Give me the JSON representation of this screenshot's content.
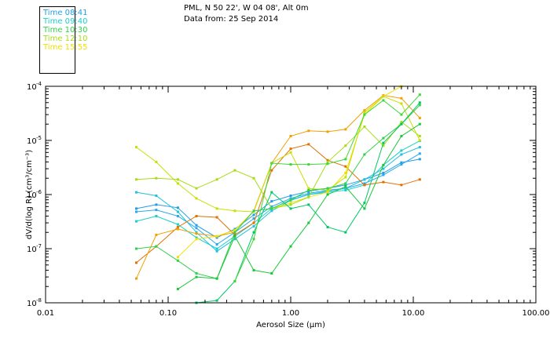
{
  "header": {
    "line1": "PML, N 50 22', W 04 08', Alt 0m",
    "line2": "Data from: 25 Sep 2014"
  },
  "chart_data": {
    "type": "line",
    "title": "",
    "xlabel": "Aerosol Size (µm)",
    "ylabel": "dV/d(log R) (cm³/cm⁻³)",
    "x_scale": "log",
    "y_scale": "log",
    "xlim": [
      0.01,
      100
    ],
    "ylim": [
      1e-08,
      0.0001
    ],
    "grid": false,
    "legend_position": "top-left outside plot",
    "x_ticks": [
      {
        "value": 0.01,
        "label": "0.01"
      },
      {
        "value": 0.1,
        "label": "0.10"
      },
      {
        "value": 1,
        "label": "1.00"
      },
      {
        "value": 10,
        "label": "10.00"
      },
      {
        "value": 100,
        "label": "100.00"
      }
    ],
    "y_ticks": [
      {
        "value": 1e-08,
        "base": "10",
        "exp": "-8"
      },
      {
        "value": 1e-07,
        "base": "10",
        "exp": "-7"
      },
      {
        "value": 1e-06,
        "base": "10",
        "exp": "-6"
      },
      {
        "value": 1e-05,
        "base": "10",
        "exp": "-5"
      },
      {
        "value": 0.0001,
        "base": "10",
        "exp": "-4"
      }
    ],
    "legend": [
      {
        "label": "Time 08:41",
        "color": "#1f9fe6"
      },
      {
        "label": "Time 09:40",
        "color": "#19d0cc"
      },
      {
        "label": "Time 10:30",
        "color": "#2fd24a"
      },
      {
        "label": "Time 12:10",
        "color": "#a8dc16"
      },
      {
        "label": "Time 15:55",
        "color": "#f0e000"
      }
    ],
    "series": [
      {
        "color": "#1f9fe6",
        "x": [
          0.055,
          0.08,
          0.12,
          0.17,
          0.25,
          0.35,
          0.5,
          0.7,
          1.0,
          1.4,
          2.0,
          2.8,
          4.0,
          5.7,
          8.0,
          11.3
        ],
        "y": [
          5.5e-07,
          6.5e-07,
          5.7e-07,
          2.7e-07,
          1.6e-07,
          2.3e-07,
          4.2e-07,
          7.5e-07,
          9.5e-07,
          1.15e-06,
          1.3e-06,
          1.5e-06,
          1.9e-06,
          2.5e-06,
          3.9e-06,
          4.5e-06
        ]
      },
      {
        "color": "#2aa8ee",
        "x": [
          0.055,
          0.08,
          0.12,
          0.17,
          0.25,
          0.35,
          0.5,
          0.7,
          1.0,
          1.4,
          2.0,
          2.8,
          4.0,
          5.7,
          8.0,
          11.3
        ],
        "y": [
          4.8e-07,
          5.2e-07,
          4e-07,
          2.4e-07,
          1.2e-07,
          2e-07,
          3.6e-07,
          6e-07,
          8.5e-07,
          1.05e-06,
          1.2e-06,
          1.3e-06,
          1.6e-06,
          2.3e-06,
          3.6e-06,
          5.7e-06
        ]
      },
      {
        "color": "#19d0cc",
        "x": [
          0.055,
          0.08,
          0.12,
          0.17,
          0.25,
          0.35,
          0.5,
          0.7,
          1.0,
          1.4,
          2.0,
          2.8,
          4.0,
          5.7,
          8.0,
          11.3
        ],
        "y": [
          3.2e-07,
          4e-07,
          2.8e-07,
          1.6e-07,
          1e-07,
          1.7e-07,
          3e-07,
          5.5e-07,
          8e-07,
          1e-06,
          1.1e-06,
          1.2e-06,
          1.5e-06,
          3.5e-06,
          6.5e-06,
          9.8e-06
        ]
      },
      {
        "color": "#21c0dd",
        "x": [
          0.055,
          0.08,
          0.12,
          0.17,
          0.25,
          0.35,
          0.5,
          0.7,
          1.0,
          1.4,
          2.0,
          2.8,
          4.0,
          5.7,
          8.0,
          11.3
        ],
        "y": [
          1.1e-06,
          9.5e-07,
          4.8e-07,
          2e-07,
          9e-08,
          1.5e-07,
          2.6e-07,
          5e-07,
          7.8e-07,
          1e-06,
          1.15e-06,
          1.3e-06,
          1.9e-06,
          3e-06,
          5.5e-06,
          7.5e-06
        ]
      },
      {
        "color": "#e07000",
        "x": [
          0.055,
          0.08,
          0.12,
          0.17,
          0.25,
          0.35,
          0.5,
          0.7,
          1.0,
          1.4,
          2.0,
          2.8,
          4.0,
          5.7,
          8.0,
          11.3
        ],
        "y": [
          5.5e-08,
          1.1e-07,
          2.5e-07,
          4e-07,
          3.8e-07,
          1.8e-07,
          3e-07,
          2.8e-06,
          7e-06,
          8.5e-06,
          4.3e-06,
          3.3e-06,
          1.5e-06,
          1.7e-06,
          1.5e-06,
          1.9e-06
        ]
      },
      {
        "color": "#f0a000",
        "x": [
          0.055,
          0.08,
          0.12,
          0.17,
          0.25,
          0.35,
          0.5,
          0.7,
          1.0,
          1.4,
          2.0,
          2.8,
          4.0,
          5.7,
          8.0,
          11.3
        ],
        "y": [
          2.8e-08,
          1.8e-07,
          2.3e-07,
          1.9e-07,
          1.7e-07,
          2e-07,
          5e-07,
          3.8e-06,
          1.2e-05,
          1.5e-05,
          1.45e-05,
          1.6e-05,
          3.6e-05,
          6.8e-05,
          6e-05,
          2.6e-05
        ]
      },
      {
        "color": "#f0e000",
        "x": [
          0.12,
          0.17,
          0.25,
          0.35,
          0.5,
          0.7,
          1.0,
          1.4,
          2.0,
          2.8,
          4.0,
          5.7,
          8.0
        ],
        "y": [
          7e-08,
          1.5e-07,
          1.7e-07,
          2.2e-07,
          5e-07,
          5.5e-07,
          7e-07,
          9e-07,
          1.1e-06,
          2.5e-06,
          3e-05,
          6.5e-05,
          0.0001
        ]
      },
      {
        "color": "#c8e000",
        "x": [
          0.055,
          0.08,
          0.12,
          0.17,
          0.25,
          0.35,
          0.5,
          0.7,
          1.0,
          1.4,
          2.0,
          2.8,
          4.0,
          5.7,
          8.0,
          11.3
        ],
        "y": [
          7.5e-06,
          4e-06,
          1.6e-06,
          8.5e-07,
          5.5e-07,
          5e-07,
          4.8e-07,
          3.8e-06,
          6e-06,
          1.3e-06,
          1.2e-06,
          2.1e-06,
          3.3e-05,
          6.5e-05,
          4.8e-05,
          1e-05
        ]
      },
      {
        "color": "#a8dc16",
        "x": [
          0.055,
          0.08,
          0.12,
          0.17,
          0.25,
          0.35,
          0.5,
          0.7,
          1.0,
          1.4,
          2.0,
          2.8,
          4.0,
          5.7,
          8.0,
          11.3
        ],
        "y": [
          1.9e-06,
          2e-06,
          1.9e-06,
          1.3e-06,
          1.9e-06,
          2.8e-06,
          2e-06,
          5.5e-07,
          6.5e-07,
          9e-07,
          4e-06,
          8e-06,
          1.8e-05,
          8e-06,
          2.2e-05,
          1.2e-05
        ]
      },
      {
        "color": "#2fd24a",
        "x": [
          0.055,
          0.08,
          0.12,
          0.17,
          0.25,
          0.35,
          0.5,
          0.7,
          1.0,
          1.4,
          2.0,
          2.8,
          4.0,
          5.7,
          8.0,
          11.3
        ],
        "y": [
          1e-07,
          1.1e-07,
          6e-08,
          3.5e-08,
          2.8e-08,
          2e-07,
          5e-07,
          5.5e-07,
          8e-07,
          1.2e-06,
          1.3e-06,
          1.6e-06,
          5.5e-06,
          1.1e-05,
          2e-05,
          4.5e-05
        ]
      },
      {
        "color": "#1ac83a",
        "x": [
          0.12,
          0.17,
          0.25,
          0.35,
          0.5,
          0.7,
          1.0,
          1.4,
          2.0,
          2.8,
          4.0,
          5.7,
          8.0,
          11.3
        ],
        "y": [
          1.8e-08,
          3e-08,
          2.8e-08,
          1.7e-07,
          4e-08,
          3.5e-08,
          1.1e-07,
          3e-07,
          1e-06,
          1.4e-06,
          5.5e-07,
          3.5e-06,
          1.2e-05,
          2e-05
        ]
      },
      {
        "color": "#00c864",
        "x": [
          0.17,
          0.25,
          0.35,
          0.5,
          0.7,
          1.0,
          1.4,
          2.0,
          2.8,
          4.0,
          5.7,
          8.0,
          11.3
        ],
        "y": [
          1e-08,
          1.1e-08,
          2.5e-08,
          2e-07,
          1.1e-06,
          5.5e-07,
          6.5e-07,
          2.5e-07,
          2e-07,
          7e-07,
          9e-06,
          2e-05,
          5e-05
        ]
      },
      {
        "color": "#3cd838",
        "x": [
          0.35,
          0.5,
          0.7,
          1.0,
          1.4,
          2.0,
          2.8,
          4.0,
          5.7,
          8.0,
          11.3
        ],
        "y": [
          2.5e-08,
          1.5e-07,
          3.8e-06,
          3.6e-06,
          3.6e-06,
          3.7e-06,
          4.5e-06,
          3e-05,
          5.5e-05,
          3e-05,
          7e-05
        ]
      }
    ]
  }
}
